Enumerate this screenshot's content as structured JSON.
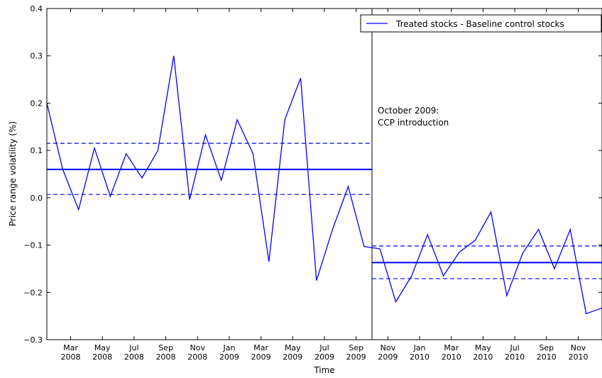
{
  "chart_data": {
    "type": "line",
    "xlabel": "Time",
    "ylabel": "Price range volatility (%)",
    "x": [
      "2008-01",
      "2008-02",
      "2008-03",
      "2008-04",
      "2008-05",
      "2008-06",
      "2008-07",
      "2008-08",
      "2008-09",
      "2008-10",
      "2008-11",
      "2008-12",
      "2009-01",
      "2009-02",
      "2009-03",
      "2009-04",
      "2009-05",
      "2009-06",
      "2009-07",
      "2009-08",
      "2009-09",
      "2009-10",
      "2009-11",
      "2009-12",
      "2010-01",
      "2010-02",
      "2010-03",
      "2010-04",
      "2010-05",
      "2010-06",
      "2010-07",
      "2010-08",
      "2010-09",
      "2010-10",
      "2010-11",
      "2010-12"
    ],
    "series": [
      {
        "name": "Treated stocks - Baseline control stocks",
        "color": "#0000ff",
        "values": [
          0.2,
          0.06,
          -0.025,
          0.105,
          0.003,
          0.093,
          0.042,
          0.1,
          0.3,
          -0.004,
          0.133,
          0.037,
          0.165,
          0.093,
          -0.135,
          0.165,
          0.253,
          -0.175,
          -0.068,
          0.024,
          -0.103,
          -0.108,
          -0.22,
          -0.165,
          -0.078,
          -0.165,
          -0.115,
          -0.09,
          -0.03,
          -0.207,
          -0.117,
          -0.067,
          -0.15,
          -0.067,
          -0.245,
          -0.233
        ]
      }
    ],
    "periods": [
      {
        "start": "2008-01",
        "end": "2009-10",
        "mean": 0.06,
        "upper": 0.115,
        "lower": 0.007
      },
      {
        "start": "2009-10",
        "end": "2010-12",
        "mean": -0.137,
        "upper": -0.102,
        "lower": -0.171
      }
    ],
    "event": {
      "x": "2009-10",
      "label": [
        "October 2009:",
        "CCP introduction"
      ]
    },
    "xlim": [
      "2008-01",
      "2010-12"
    ],
    "xticks": [
      {
        "value": "2008-03",
        "label": [
          "Mar",
          "2008"
        ]
      },
      {
        "value": "2008-05",
        "label": [
          "May",
          "2008"
        ]
      },
      {
        "value": "2008-07",
        "label": [
          "Jul",
          "2008"
        ]
      },
      {
        "value": "2008-09",
        "label": [
          "Sep",
          "2008"
        ]
      },
      {
        "value": "2008-11",
        "label": [
          "Nov",
          "2008"
        ]
      },
      {
        "value": "2009-01",
        "label": [
          "Jan",
          "2009"
        ]
      },
      {
        "value": "2009-03",
        "label": [
          "Mar",
          "2009"
        ]
      },
      {
        "value": "2009-05",
        "label": [
          "May",
          "2009"
        ]
      },
      {
        "value": "2009-07",
        "label": [
          "Jul",
          "2009"
        ]
      },
      {
        "value": "2009-09",
        "label": [
          "Sep",
          "2009"
        ]
      },
      {
        "value": "2009-11",
        "label": [
          "Nov",
          "2009"
        ]
      },
      {
        "value": "2010-01",
        "label": [
          "Jan",
          "2010"
        ]
      },
      {
        "value": "2010-03",
        "label": [
          "Mar",
          "2010"
        ]
      },
      {
        "value": "2010-05",
        "label": [
          "May",
          "2010"
        ]
      },
      {
        "value": "2010-07",
        "label": [
          "Jul",
          "2010"
        ]
      },
      {
        "value": "2010-09",
        "label": [
          "Sep",
          "2010"
        ]
      },
      {
        "value": "2010-11",
        "label": [
          "Nov",
          "2010"
        ]
      }
    ],
    "ylim": [
      -0.3,
      0.4
    ],
    "yticks": [
      {
        "value": -0.3,
        "label": "−0.3"
      },
      {
        "value": -0.2,
        "label": "−0.2"
      },
      {
        "value": -0.1,
        "label": "−0.1"
      },
      {
        "value": 0,
        "label": "0.0"
      },
      0.1,
      0.2,
      0.3,
      0.4
    ],
    "legend": "upper right"
  }
}
